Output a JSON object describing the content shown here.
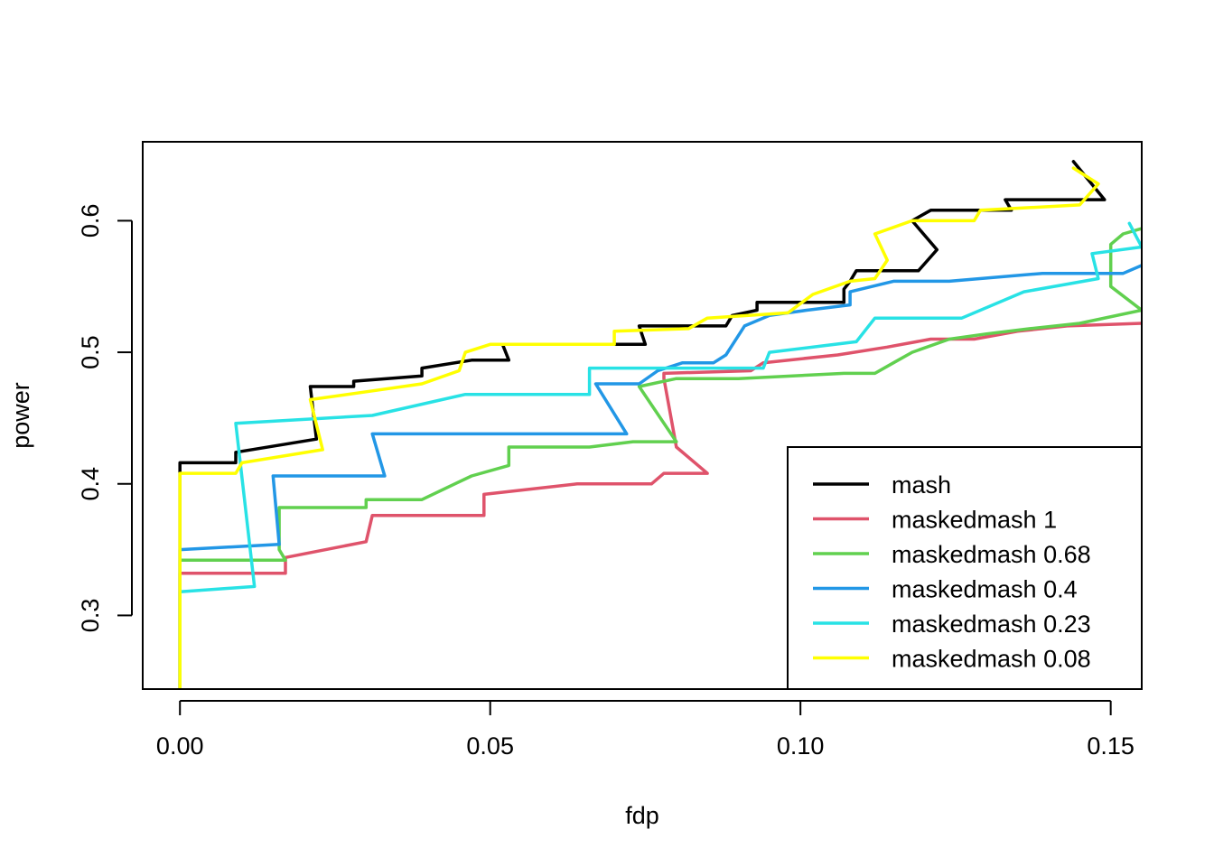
{
  "chart_data": {
    "type": "line",
    "title": "",
    "xlabel": "fdp",
    "ylabel": "power",
    "xlim": [
      -0.006,
      0.155
    ],
    "ylim": [
      0.244,
      0.66
    ],
    "xticks": [
      0.0,
      0.05,
      0.1,
      0.15
    ],
    "xtick_labels": [
      "0.00",
      "0.05",
      "0.10",
      "0.15"
    ],
    "yticks": [
      0.3,
      0.4,
      0.5,
      0.6
    ],
    "ytick_labels": [
      "0.3",
      "0.4",
      "0.5",
      "0.6"
    ],
    "grid": false,
    "legend_position": "bottom-right",
    "series": [
      {
        "name": "mash",
        "color": "#000000",
        "points": [
          [
            0.0,
            0.244
          ],
          [
            0.0,
            0.41
          ],
          [
            0.0,
            0.416
          ],
          [
            0.009,
            0.416
          ],
          [
            0.009,
            0.424
          ],
          [
            0.022,
            0.434
          ],
          [
            0.021,
            0.474
          ],
          [
            0.028,
            0.474
          ],
          [
            0.028,
            0.478
          ],
          [
            0.039,
            0.482
          ],
          [
            0.039,
            0.488
          ],
          [
            0.047,
            0.494
          ],
          [
            0.053,
            0.494
          ],
          [
            0.052,
            0.506
          ],
          [
            0.075,
            0.506
          ],
          [
            0.074,
            0.52
          ],
          [
            0.088,
            0.52
          ],
          [
            0.089,
            0.528
          ],
          [
            0.093,
            0.532
          ],
          [
            0.093,
            0.538
          ],
          [
            0.107,
            0.538
          ],
          [
            0.107,
            0.548
          ],
          [
            0.108,
            0.554
          ],
          [
            0.109,
            0.562
          ],
          [
            0.119,
            0.562
          ],
          [
            0.122,
            0.578
          ],
          [
            0.118,
            0.6
          ],
          [
            0.121,
            0.608
          ],
          [
            0.134,
            0.608
          ],
          [
            0.133,
            0.616
          ],
          [
            0.149,
            0.616
          ],
          [
            0.144,
            0.645
          ]
        ]
      },
      {
        "name": "maskedmash 1",
        "color": "#DF536B",
        "points": [
          [
            0.0,
            0.244
          ],
          [
            0.0,
            0.332
          ],
          [
            0.017,
            0.332
          ],
          [
            0.017,
            0.344
          ],
          [
            0.03,
            0.356
          ],
          [
            0.031,
            0.376
          ],
          [
            0.049,
            0.376
          ],
          [
            0.049,
            0.392
          ],
          [
            0.064,
            0.4
          ],
          [
            0.076,
            0.4
          ],
          [
            0.078,
            0.408
          ],
          [
            0.085,
            0.408
          ],
          [
            0.08,
            0.428
          ],
          [
            0.078,
            0.48
          ],
          [
            0.078,
            0.484
          ],
          [
            0.092,
            0.486
          ],
          [
            0.094,
            0.492
          ],
          [
            0.106,
            0.498
          ],
          [
            0.114,
            0.504
          ],
          [
            0.121,
            0.51
          ],
          [
            0.128,
            0.51
          ],
          [
            0.135,
            0.516
          ],
          [
            0.143,
            0.52
          ],
          [
            0.155,
            0.522
          ]
        ]
      },
      {
        "name": "maskedmash 0.68",
        "color": "#61D04F",
        "points": [
          [
            0.0,
            0.244
          ],
          [
            0.0,
            0.342
          ],
          [
            0.017,
            0.342
          ],
          [
            0.016,
            0.35
          ],
          [
            0.016,
            0.382
          ],
          [
            0.03,
            0.382
          ],
          [
            0.03,
            0.388
          ],
          [
            0.039,
            0.388
          ],
          [
            0.047,
            0.406
          ],
          [
            0.053,
            0.414
          ],
          [
            0.053,
            0.428
          ],
          [
            0.066,
            0.428
          ],
          [
            0.073,
            0.432
          ],
          [
            0.08,
            0.432
          ],
          [
            0.074,
            0.474
          ],
          [
            0.08,
            0.48
          ],
          [
            0.09,
            0.48
          ],
          [
            0.107,
            0.484
          ],
          [
            0.112,
            0.484
          ],
          [
            0.115,
            0.492
          ],
          [
            0.118,
            0.5
          ],
          [
            0.124,
            0.51
          ],
          [
            0.13,
            0.514
          ],
          [
            0.137,
            0.518
          ],
          [
            0.145,
            0.522
          ],
          [
            0.155,
            0.532
          ],
          [
            0.15,
            0.55
          ],
          [
            0.15,
            0.582
          ],
          [
            0.152,
            0.59
          ],
          [
            0.155,
            0.594
          ]
        ]
      },
      {
        "name": "maskedmash 0.4",
        "color": "#2297E6",
        "points": [
          [
            0.0,
            0.244
          ],
          [
            0.0,
            0.35
          ],
          [
            0.016,
            0.354
          ],
          [
            0.015,
            0.406
          ],
          [
            0.033,
            0.406
          ],
          [
            0.031,
            0.438
          ],
          [
            0.072,
            0.438
          ],
          [
            0.067,
            0.476
          ],
          [
            0.074,
            0.476
          ],
          [
            0.077,
            0.486
          ],
          [
            0.081,
            0.492
          ],
          [
            0.086,
            0.492
          ],
          [
            0.088,
            0.498
          ],
          [
            0.091,
            0.52
          ],
          [
            0.095,
            0.528
          ],
          [
            0.101,
            0.532
          ],
          [
            0.108,
            0.536
          ],
          [
            0.108,
            0.546
          ],
          [
            0.115,
            0.554
          ],
          [
            0.124,
            0.554
          ],
          [
            0.139,
            0.56
          ],
          [
            0.152,
            0.56
          ],
          [
            0.155,
            0.566
          ]
        ]
      },
      {
        "name": "maskedmash 0.23",
        "color": "#28E2E5",
        "points": [
          [
            0.0,
            0.244
          ],
          [
            0.0,
            0.318
          ],
          [
            0.012,
            0.322
          ],
          [
            0.009,
            0.446
          ],
          [
            0.031,
            0.452
          ],
          [
            0.046,
            0.468
          ],
          [
            0.066,
            0.468
          ],
          [
            0.066,
            0.488
          ],
          [
            0.094,
            0.488
          ],
          [
            0.095,
            0.5
          ],
          [
            0.109,
            0.508
          ],
          [
            0.112,
            0.526
          ],
          [
            0.126,
            0.526
          ],
          [
            0.136,
            0.546
          ],
          [
            0.148,
            0.556
          ],
          [
            0.147,
            0.575
          ],
          [
            0.155,
            0.58
          ],
          [
            0.153,
            0.598
          ]
        ]
      },
      {
        "name": "maskedmash 0.08",
        "color": "#FFFF00",
        "points": [
          [
            0.0,
            0.244
          ],
          [
            0.0,
            0.408
          ],
          [
            0.009,
            0.408
          ],
          [
            0.01,
            0.416
          ],
          [
            0.023,
            0.426
          ],
          [
            0.021,
            0.464
          ],
          [
            0.03,
            0.47
          ],
          [
            0.039,
            0.476
          ],
          [
            0.045,
            0.486
          ],
          [
            0.046,
            0.5
          ],
          [
            0.05,
            0.506
          ],
          [
            0.07,
            0.506
          ],
          [
            0.07,
            0.516
          ],
          [
            0.082,
            0.518
          ],
          [
            0.085,
            0.526
          ],
          [
            0.098,
            0.53
          ],
          [
            0.102,
            0.544
          ],
          [
            0.108,
            0.554
          ],
          [
            0.112,
            0.556
          ],
          [
            0.114,
            0.57
          ],
          [
            0.112,
            0.59
          ],
          [
            0.118,
            0.6
          ],
          [
            0.128,
            0.6
          ],
          [
            0.129,
            0.608
          ],
          [
            0.145,
            0.612
          ],
          [
            0.148,
            0.628
          ],
          [
            0.144,
            0.64
          ]
        ]
      }
    ]
  }
}
